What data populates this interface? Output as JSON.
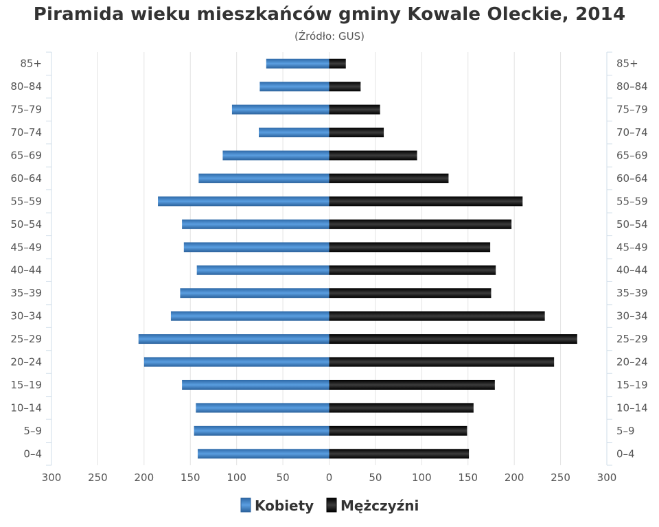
{
  "chart_data": {
    "type": "bar",
    "title": "Piramida wieku mieszkańców gminy Kowale Oleckie, 2014",
    "subtitle": "(Źródło: GUS)",
    "categories": [
      "85+",
      "80–84",
      "75–79",
      "70–74",
      "65–69",
      "60–64",
      "55–59",
      "50–54",
      "45–49",
      "40–44",
      "35–39",
      "30–34",
      "25–29",
      "20–24",
      "15–19",
      "10–14",
      "5–9",
      "0–4"
    ],
    "series": [
      {
        "name": "Kobiety",
        "color": "#3a7bc0",
        "values": [
          68,
          75,
          105,
          76,
          115,
          141,
          185,
          159,
          157,
          143,
          161,
          171,
          206,
          200,
          159,
          144,
          146,
          142
        ]
      },
      {
        "name": "Mężczyźni",
        "color": "#1a1a1a",
        "values": [
          18,
          34,
          55,
          59,
          95,
          129,
          209,
          197,
          174,
          180,
          175,
          233,
          268,
          243,
          179,
          156,
          149,
          151
        ]
      }
    ],
    "x_ticks": [
      "300",
      "250",
      "200",
      "150",
      "100",
      "50",
      "0",
      "50",
      "100",
      "150",
      "200",
      "250",
      "300"
    ],
    "xlim": [
      -300,
      300
    ],
    "grid": true,
    "legend_position": "bottom-center"
  }
}
